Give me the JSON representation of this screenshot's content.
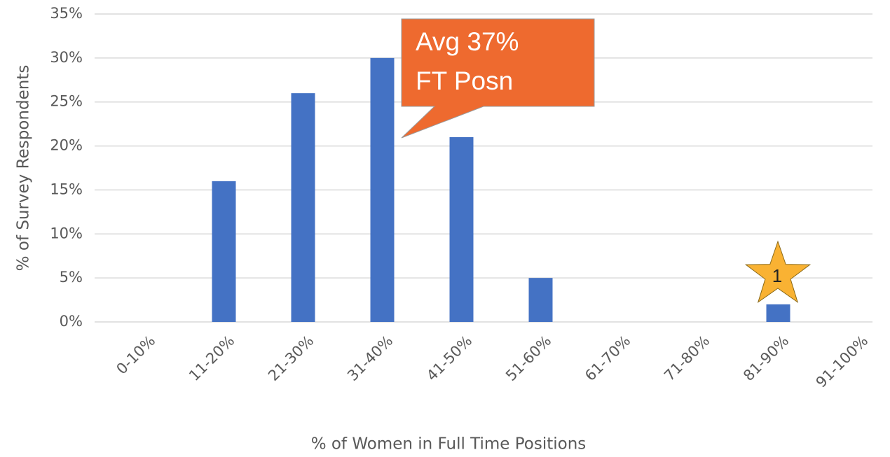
{
  "chart_data": {
    "type": "bar",
    "y_label": "% of Survey Respondents",
    "x_label": "% of Women  in Full Time Positions",
    "categories": [
      "0-10%",
      "11-20%",
      "21-30%",
      "31-40%",
      "41-50%",
      "51-60%",
      "61-70%",
      "71-80%",
      "81-90%",
      "91-100%"
    ],
    "values": [
      0,
      16,
      26,
      30,
      21,
      5,
      0,
      0,
      2,
      0
    ],
    "color": "#4472c4",
    "ylim": [
      0,
      35
    ],
    "yticks": [
      {
        "value": 0,
        "label": "0%"
      },
      {
        "value": 5,
        "label": "5%"
      },
      {
        "value": 10,
        "label": "10%"
      },
      {
        "value": 15,
        "label": "15%"
      },
      {
        "value": 20,
        "label": "20%"
      },
      {
        "value": 25,
        "label": "25%"
      },
      {
        "value": 30,
        "label": "30%"
      },
      {
        "value": 35,
        "label": "35%"
      }
    ],
    "grid": true,
    "callout": [
      "Avg 37%",
      "FT Posn"
    ],
    "star_label": "1"
  }
}
